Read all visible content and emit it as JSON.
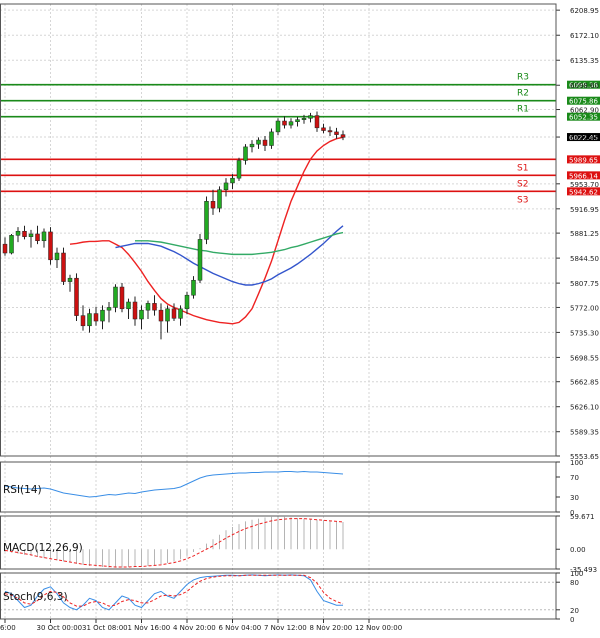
{
  "chart_data": {
    "type": "candlestick",
    "price_axis": {
      "ticks": [
        "6208.95",
        "6172.10",
        "6135.35",
        "6098.60",
        "6062.90",
        "6022.45",
        "5953.70",
        "5916.95",
        "5881.25",
        "5844.50",
        "5807.75",
        "5772.00",
        "5735.30",
        "5698.55",
        "5662.85",
        "5626.10",
        "5589.35",
        "5553.65"
      ],
      "ylim": [
        5553.65,
        6218
      ],
      "current_price": "6022.45",
      "current_value": 6022.45
    },
    "levels": [
      {
        "name": "R3",
        "value": 6099.38,
        "label": "6099.38",
        "color": "#1a8a1a"
      },
      {
        "name": "R2",
        "value": 6075.86,
        "label": "6075.86",
        "color": "#1a8a1a"
      },
      {
        "name": "R1",
        "value": 6052.35,
        "label": "6052.35",
        "color": "#1a8a1a"
      },
      {
        "name": "S1",
        "value": 5989.65,
        "label": "5989.65",
        "color": "#dd1111"
      },
      {
        "name": "S2",
        "value": 5966.14,
        "label": "5966.14",
        "color": "#dd1111"
      },
      {
        "name": "S3",
        "value": 5942.62,
        "label": "5942.62",
        "color": "#dd1111"
      }
    ],
    "x_axis": {
      "labels": [
        "6:00",
        "30 Oct 00:00",
        "31 Oct 08:00",
        "1 Nov 16:00",
        "4 Nov 20:00",
        "6 Nov 04:00",
        "7 Nov 12:00",
        "8 Nov 20:00",
        "12 Nov 00:00"
      ],
      "label_positions": [
        0,
        7,
        14,
        21,
        28,
        35,
        42,
        49,
        56
      ]
    },
    "candles": [
      [
        5865,
        5875,
        5848,
        5852
      ],
      [
        5852,
        5880,
        5850,
        5878
      ],
      [
        5878,
        5890,
        5868,
        5884
      ],
      [
        5884,
        5892,
        5872,
        5876
      ],
      [
        5876,
        5886,
        5860,
        5880
      ],
      [
        5880,
        5892,
        5865,
        5870
      ],
      [
        5870,
        5888,
        5860,
        5883
      ],
      [
        5883,
        5890,
        5835,
        5842
      ],
      [
        5842,
        5860,
        5830,
        5852
      ],
      [
        5852,
        5860,
        5805,
        5810
      ],
      [
        5810,
        5820,
        5795,
        5815
      ],
      [
        5815,
        5822,
        5752,
        5760
      ],
      [
        5760,
        5775,
        5738,
        5745
      ],
      [
        5745,
        5770,
        5735,
        5763
      ],
      [
        5763,
        5773,
        5745,
        5752
      ],
      [
        5752,
        5775,
        5740,
        5768
      ],
      [
        5768,
        5780,
        5750,
        5772
      ],
      [
        5772,
        5806,
        5765,
        5802
      ],
      [
        5802,
        5808,
        5765,
        5770
      ],
      [
        5770,
        5785,
        5755,
        5780
      ],
      [
        5780,
        5788,
        5745,
        5755
      ],
      [
        5755,
        5775,
        5740,
        5768
      ],
      [
        5768,
        5782,
        5755,
        5778
      ],
      [
        5778,
        5790,
        5760,
        5768
      ],
      [
        5768,
        5778,
        5725,
        5752
      ],
      [
        5752,
        5775,
        5735,
        5770
      ],
      [
        5770,
        5778,
        5752,
        5756
      ],
      [
        5756,
        5775,
        5745,
        5770
      ],
      [
        5770,
        5795,
        5762,
        5790
      ],
      [
        5790,
        5818,
        5785,
        5812
      ],
      [
        5812,
        5880,
        5808,
        5872
      ],
      [
        5872,
        5935,
        5865,
        5928
      ],
      [
        5928,
        5945,
        5908,
        5918
      ],
      [
        5918,
        5950,
        5912,
        5945
      ],
      [
        5945,
        5962,
        5935,
        5955
      ],
      [
        5955,
        5968,
        5946,
        5962
      ],
      [
        5962,
        5992,
        5958,
        5988
      ],
      [
        5988,
        6012,
        5982,
        6008
      ],
      [
        6008,
        6018,
        6000,
        6012
      ],
      [
        6012,
        6022,
        6005,
        6018
      ],
      [
        6018,
        6024,
        6002,
        6010
      ],
      [
        6010,
        6035,
        6005,
        6030
      ],
      [
        6030,
        6050,
        6025,
        6046
      ],
      [
        6046,
        6053,
        6035,
        6040
      ],
      [
        6040,
        6050,
        6035,
        6045
      ],
      [
        6045,
        6052,
        6038,
        6048
      ],
      [
        6048,
        6055,
        6042,
        6050
      ],
      [
        6050,
        6058,
        6044,
        6054
      ],
      [
        6054,
        6060,
        6030,
        6036
      ],
      [
        6036,
        6042,
        6028,
        6032
      ],
      [
        6032,
        6038,
        6024,
        6030
      ],
      [
        6030,
        6036,
        6020,
        6026
      ],
      [
        6026,
        6032,
        6018,
        6022
      ]
    ],
    "series": [
      {
        "name": "",
        "color": "#ee2222",
        "values": [
          5865,
          5866,
          5868,
          5869,
          5869,
          5870,
          5870,
          5865,
          5860,
          5850,
          5838,
          5825,
          5810,
          5797,
          5785,
          5777,
          5772,
          5768,
          5764,
          5760,
          5757,
          5754,
          5752,
          5750,
          5749,
          5748,
          5750,
          5758,
          5770,
          5792,
          5815,
          5840,
          5870,
          5900,
          5928,
          5950,
          5972,
          5990,
          6002,
          6010,
          6016,
          6020,
          6022
        ]
      },
      {
        "name": "",
        "color": "#3355cc",
        "values": [
          5860,
          5862,
          5864,
          5866,
          5866,
          5866,
          5864,
          5862,
          5858,
          5854,
          5849,
          5843,
          5837,
          5832,
          5827,
          5822,
          5818,
          5814,
          5810,
          5807,
          5805,
          5805,
          5807,
          5810,
          5814,
          5820,
          5825,
          5830,
          5836,
          5843,
          5850,
          5858,
          5866,
          5875,
          5884,
          5892
        ]
      },
      {
        "name": "",
        "color": "#33aa66",
        "values": [
          5870,
          5870,
          5870,
          5869,
          5868,
          5866,
          5864,
          5862,
          5860,
          5858,
          5856,
          5855,
          5853,
          5852,
          5851,
          5850,
          5850,
          5850,
          5850,
          5851,
          5852,
          5853,
          5855,
          5857,
          5860,
          5862,
          5865,
          5868,
          5871,
          5874,
          5877,
          5880,
          5882
        ]
      }
    ],
    "indicators": [
      {
        "name": "RSI(14)",
        "ticks": [
          "100",
          "70",
          "30",
          "0"
        ],
        "values": [
          52,
          50,
          48,
          47,
          46,
          47,
          48,
          46,
          42,
          38,
          36,
          34,
          32,
          30,
          31,
          33,
          35,
          34,
          36,
          38,
          37,
          40,
          42,
          44,
          45,
          46,
          47,
          50,
          56,
          62,
          68,
          72,
          74,
          75,
          76,
          77,
          78,
          78,
          79,
          79,
          80,
          80,
          80,
          81,
          81,
          80,
          81,
          80,
          80,
          79,
          78,
          77,
          76
        ]
      },
      {
        "name": "MACD(12,26,9)",
        "ticks": [
          "59.671",
          "0.00",
          "-35.493"
        ],
        "histogram": [
          -5,
          -6,
          -8,
          -10,
          -12,
          -14,
          -16,
          -18,
          -20,
          -22,
          -24,
          -26,
          -28,
          -30,
          -31,
          -32,
          -33,
          -33,
          -33,
          -32,
          -32,
          -31,
          -30,
          -29,
          -27,
          -25,
          -22,
          -18,
          -12,
          -5,
          2,
          10,
          18,
          26,
          34,
          40,
          45,
          50,
          53,
          55,
          57,
          58,
          59,
          58,
          57,
          56,
          55,
          54,
          53,
          52,
          51,
          50,
          49
        ],
        "signal": [
          -2,
          -4,
          -6,
          -8,
          -10,
          -13,
          -15,
          -17,
          -19,
          -21,
          -23,
          -25,
          -27,
          -28,
          -29,
          -30,
          -31,
          -32,
          -32,
          -32,
          -31,
          -31,
          -30,
          -29,
          -28,
          -26,
          -24,
          -21,
          -17,
          -12,
          -6,
          0,
          6,
          13,
          20,
          26,
          32,
          37,
          41,
          45,
          48,
          51,
          53,
          54,
          55,
          55,
          55,
          54,
          53,
          52,
          51,
          50,
          49
        ]
      },
      {
        "name": "Stoch(9,6,3)",
        "ticks": [
          "100",
          "80",
          "20",
          "0"
        ],
        "k": [
          60,
          55,
          40,
          25,
          30,
          50,
          65,
          70,
          55,
          35,
          25,
          20,
          30,
          45,
          40,
          25,
          20,
          35,
          50,
          45,
          30,
          25,
          40,
          55,
          60,
          50,
          45,
          60,
          75,
          85,
          90,
          92,
          93,
          94,
          95,
          95,
          94,
          95,
          96,
          95,
          94,
          95,
          96,
          95,
          96,
          95,
          94,
          85,
          60,
          40,
          35,
          30,
          30
        ],
        "d": [
          55,
          52,
          45,
          35,
          32,
          40,
          52,
          60,
          58,
          48,
          35,
          28,
          28,
          35,
          38,
          35,
          28,
          30,
          38,
          42,
          40,
          35,
          35,
          42,
          50,
          52,
          50,
          53,
          60,
          72,
          82,
          88,
          91,
          93,
          94,
          94,
          94,
          95,
          95,
          95,
          95,
          95,
          95,
          95,
          95,
          95,
          95,
          90,
          78,
          58,
          45,
          38,
          33
        ]
      }
    ]
  }
}
